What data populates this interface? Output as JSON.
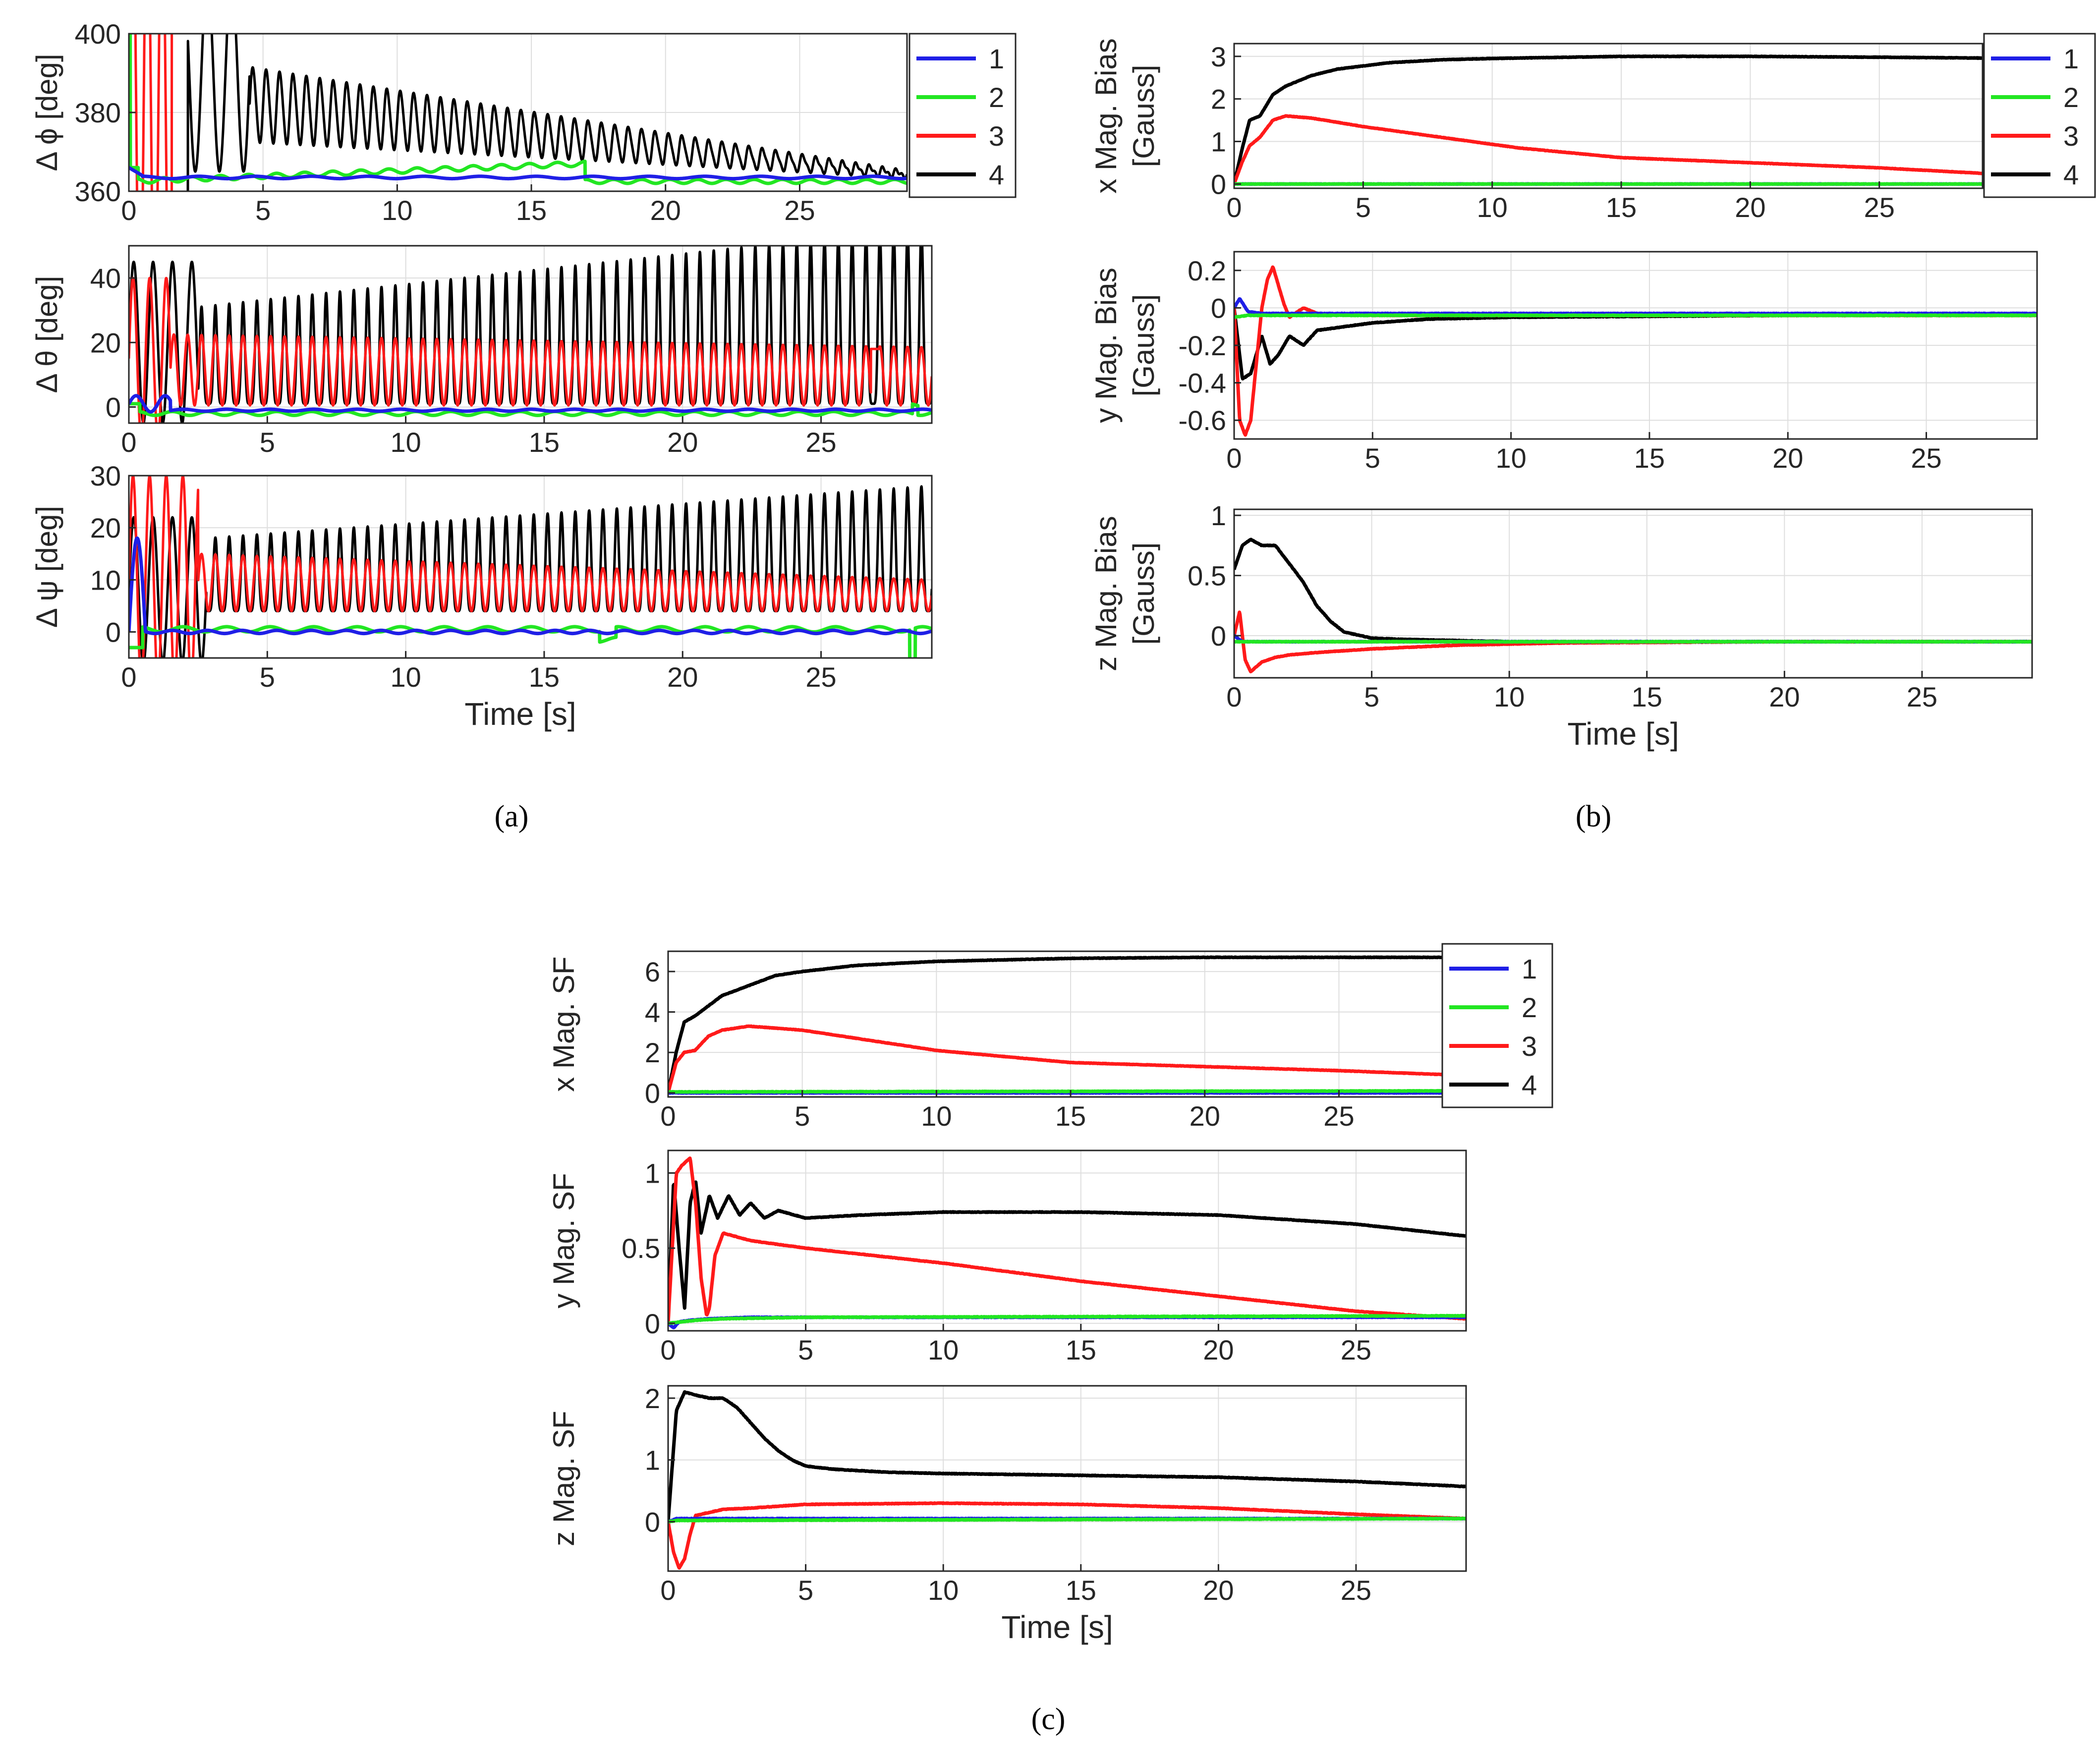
{
  "colors": {
    "1": "#1f1fe6",
    "2": "#22e622",
    "3": "#ff1a1a",
    "4": "#000000"
  },
  "panel_labels": {
    "a": "(a)",
    "b": "(b)",
    "c": "(c)"
  },
  "chart_data": [
    {
      "id": "a1",
      "type": "line",
      "ylabel": "Δ ϕ [deg]",
      "xlabel": "",
      "xlim": [
        0,
        29
      ],
      "ylim": [
        360,
        400
      ],
      "xticks": [
        "0",
        "5",
        "10",
        "15",
        "20",
        "25"
      ],
      "yticks": [
        "360",
        "380",
        "400"
      ],
      "grid": true,
      "legend": [
        "1",
        "2",
        "3",
        "4"
      ],
      "legend_position": "top-right",
      "series": [
        {
          "name": "1",
          "desc": "starts ~365, small blip then settles ~363"
        },
        {
          "name": "2",
          "desc": "starts ~400 at t=0, drops to ~363, drifts up to ~367 near t=16, drops to ~363 after t=17"
        },
        {
          "name": "3",
          "desc": "large oscillation beyond axis until t≈1.5, off-scale afterwards"
        },
        {
          "name": "4",
          "desc": "oscillation amplitude decaying from ~400 at t=3 to ~362 at t=28, ~0.5 s period"
        }
      ]
    },
    {
      "id": "a2",
      "type": "line",
      "ylabel": "Δ θ [deg]",
      "xlabel": "",
      "xlim": [
        0,
        29
      ],
      "ylim": [
        -5,
        50
      ],
      "xticks": [
        "0",
        "5",
        "10",
        "15",
        "20",
        "25"
      ],
      "yticks": [
        "0",
        "20",
        "40"
      ],
      "grid": true,
      "series": [
        {
          "name": "1",
          "desc": "near 0, small transient ~3 at start"
        },
        {
          "name": "2",
          "desc": "near -2, slight ripple"
        },
        {
          "name": "3",
          "desc": "oscillates between ~0 and ~20, spike near t=27"
        },
        {
          "name": "4",
          "desc": "oscillates from ~0 to envelope growing from 30 to >50"
        }
      ]
    },
    {
      "id": "a3",
      "type": "line",
      "ylabel": "Δ ψ [deg]",
      "xlabel": "Time [s]",
      "xlim": [
        0,
        29
      ],
      "ylim": [
        -5,
        30
      ],
      "xticks": [
        "0",
        "5",
        "10",
        "15",
        "20",
        "25"
      ],
      "yticks": [
        "0",
        "10",
        "20",
        "30"
      ],
      "grid": true,
      "series": [
        {
          "name": "1",
          "desc": "spike to ~18 at t≈0.3 then ~0"
        },
        {
          "name": "2",
          "desc": "near 0, dip near t=28"
        },
        {
          "name": "3",
          "desc": "large early swings, then oscillation ~5 to ~15 decaying to ~10"
        },
        {
          "name": "4",
          "desc": "oscillation from ~5 to envelope growing from ~18 to ~28"
        }
      ]
    },
    {
      "id": "b1",
      "type": "line",
      "ylabel": "x Mag. Bias [Gauss]",
      "xlabel": "",
      "xlim": [
        0,
        29
      ],
      "ylim": [
        -0.1,
        3.3
      ],
      "xticks": [
        "0",
        "5",
        "10",
        "15",
        "20",
        "25"
      ],
      "yticks": [
        "0",
        "1",
        "2",
        "3"
      ],
      "grid": true,
      "legend": [
        "1",
        "2",
        "3",
        "4"
      ],
      "legend_position": "top-right",
      "series": [
        {
          "name": "1",
          "x": [
            0,
            29
          ],
          "y": [
            0,
            0
          ]
        },
        {
          "name": "2",
          "x": [
            0,
            29
          ],
          "y": [
            0,
            0
          ]
        },
        {
          "name": "3",
          "x": [
            0,
            0.3,
            0.6,
            1,
            1.5,
            2,
            3,
            5,
            8,
            11,
            15,
            20,
            25,
            29
          ],
          "y": [
            0,
            0.5,
            0.9,
            1.1,
            1.5,
            1.6,
            1.55,
            1.35,
            1.1,
            0.85,
            0.62,
            0.5,
            0.38,
            0.25
          ]
        },
        {
          "name": "4",
          "x": [
            0,
            0.3,
            0.6,
            1,
            1.5,
            2,
            3,
            4,
            6,
            8,
            10,
            15,
            20,
            25,
            29
          ],
          "y": [
            0,
            0.8,
            1.5,
            1.6,
            2.1,
            2.3,
            2.55,
            2.7,
            2.85,
            2.92,
            2.95,
            3.0,
            3.0,
            2.98,
            2.96
          ]
        }
      ]
    },
    {
      "id": "b2",
      "type": "line",
      "ylabel": "y Mag. Bias [Gauss]",
      "xlabel": "",
      "xlim": [
        0,
        29
      ],
      "ylim": [
        -0.7,
        0.3
      ],
      "xticks": [
        "0",
        "5",
        "10",
        "15",
        "20",
        "25"
      ],
      "yticks": [
        "-0.6",
        "-0.4",
        "-0.2",
        "0",
        "0.2"
      ],
      "grid": true,
      "series": [
        {
          "name": "1",
          "x": [
            0,
            0.2,
            0.5,
            1,
            29
          ],
          "y": [
            0,
            0.05,
            -0.02,
            -0.03,
            -0.03
          ]
        },
        {
          "name": "2",
          "x": [
            0,
            0.5,
            29
          ],
          "y": [
            -0.05,
            -0.04,
            -0.04
          ]
        },
        {
          "name": "3",
          "x": [
            0,
            0.2,
            0.4,
            0.6,
            0.8,
            1.0,
            1.2,
            1.4,
            1.6,
            1.8,
            2,
            2.5,
            3,
            5,
            10,
            29
          ],
          "y": [
            0,
            -0.6,
            -0.68,
            -0.6,
            -0.3,
            0,
            0.15,
            0.22,
            0.12,
            0.02,
            -0.05,
            0.0,
            -0.03,
            -0.04,
            -0.04,
            -0.04
          ]
        },
        {
          "name": "4",
          "x": [
            0,
            0.3,
            0.6,
            1,
            1.3,
            1.6,
            2,
            2.5,
            3,
            4,
            5,
            7,
            10,
            15,
            20,
            29
          ],
          "y": [
            0,
            -0.38,
            -0.35,
            -0.15,
            -0.3,
            -0.25,
            -0.15,
            -0.2,
            -0.12,
            -0.1,
            -0.08,
            -0.06,
            -0.05,
            -0.045,
            -0.04,
            -0.04
          ]
        }
      ]
    },
    {
      "id": "b3",
      "type": "line",
      "ylabel": "z Mag. Bias [Gauss]",
      "xlabel": "Time [s]",
      "xlim": [
        0,
        29
      ],
      "ylim": [
        -0.35,
        1.05
      ],
      "xticks": [
        "0",
        "5",
        "10",
        "15",
        "20",
        "25"
      ],
      "yticks": [
        "0",
        "0.5",
        "1"
      ],
      "grid": true,
      "series": [
        {
          "name": "1",
          "x": [
            0,
            0.3,
            29
          ],
          "y": [
            0,
            -0.05,
            -0.05
          ]
        },
        {
          "name": "2",
          "x": [
            0,
            0.3,
            29
          ],
          "y": [
            -0.05,
            -0.05,
            -0.05
          ]
        },
        {
          "name": "3",
          "x": [
            0,
            0.2,
            0.4,
            0.6,
            1,
            1.5,
            2,
            3,
            5,
            8,
            12,
            20,
            29
          ],
          "y": [
            0,
            0.2,
            -0.2,
            -0.3,
            -0.22,
            -0.18,
            -0.16,
            -0.14,
            -0.11,
            -0.08,
            -0.06,
            -0.05,
            -0.05
          ]
        },
        {
          "name": "4",
          "x": [
            0,
            0.3,
            0.6,
            1,
            1.5,
            2,
            2.5,
            3,
            3.5,
            4,
            5,
            6,
            8,
            10,
            29
          ],
          "y": [
            0.55,
            0.75,
            0.8,
            0.75,
            0.75,
            0.6,
            0.45,
            0.25,
            0.12,
            0.03,
            -0.02,
            -0.03,
            -0.04,
            -0.05,
            -0.05
          ]
        }
      ]
    },
    {
      "id": "c1",
      "type": "line",
      "ylabel": "x Mag. SF",
      "xlabel": "",
      "xlim": [
        0,
        29
      ],
      "ylim": [
        -0.2,
        7
      ],
      "xticks": [
        "0",
        "5",
        "10",
        "15",
        "20",
        "25"
      ],
      "yticks": [
        "0",
        "2",
        "4",
        "6"
      ],
      "grid": true,
      "legend": [
        "1",
        "2",
        "3",
        "4"
      ],
      "legend_position": "top-right",
      "series": [
        {
          "name": "1",
          "x": [
            0,
            29
          ],
          "y": [
            0,
            0
          ]
        },
        {
          "name": "2",
          "x": [
            0,
            29
          ],
          "y": [
            0.05,
            0.1
          ]
        },
        {
          "name": "3",
          "x": [
            0,
            0.3,
            0.6,
            1,
            1.5,
            2,
            3,
            4,
            5,
            7,
            10,
            15,
            20,
            25,
            29
          ],
          "y": [
            0,
            1.5,
            2.0,
            2.1,
            2.8,
            3.1,
            3.3,
            3.2,
            3.1,
            2.7,
            2.1,
            1.5,
            1.3,
            1.1,
            0.9
          ]
        },
        {
          "name": "4",
          "x": [
            0,
            0.3,
            0.6,
            1,
            1.5,
            2,
            3,
            4,
            5,
            7,
            10,
            15,
            20,
            25,
            29
          ],
          "y": [
            0,
            2,
            3.5,
            3.8,
            4.3,
            4.8,
            5.3,
            5.8,
            6.0,
            6.3,
            6.5,
            6.65,
            6.7,
            6.7,
            6.7
          ]
        }
      ]
    },
    {
      "id": "c2",
      "type": "line",
      "ylabel": "y Mag. SF",
      "xlabel": "",
      "xlim": [
        0,
        29
      ],
      "ylim": [
        -0.05,
        1.15
      ],
      "xticks": [
        "0",
        "5",
        "10",
        "15",
        "20",
        "25"
      ],
      "yticks": [
        "0",
        "0.5",
        "1"
      ],
      "grid": true,
      "series": [
        {
          "name": "1",
          "x": [
            0,
            0.2,
            0.4,
            0.8,
            1.5,
            3,
            29
          ],
          "y": [
            0,
            -0.03,
            0.01,
            0.02,
            0.03,
            0.04,
            0.04
          ]
        },
        {
          "name": "2",
          "x": [
            0,
            0.5,
            1,
            2,
            5,
            29
          ],
          "y": [
            0,
            0.01,
            0.02,
            0.03,
            0.04,
            0.05
          ]
        },
        {
          "name": "3",
          "x": [
            0,
            0.3,
            0.5,
            0.8,
            1.0,
            1.2,
            1.4,
            1.5,
            1.7,
            2.0,
            3,
            5,
            10,
            15,
            20,
            25,
            29
          ],
          "y": [
            0,
            1.0,
            1.05,
            1.1,
            0.8,
            0.3,
            0.05,
            0.1,
            0.45,
            0.6,
            0.55,
            0.5,
            0.4,
            0.28,
            0.18,
            0.08,
            0.03
          ]
        },
        {
          "name": "4",
          "x": [
            0,
            0.2,
            0.4,
            0.6,
            0.8,
            1.0,
            1.2,
            1.5,
            1.8,
            2.2,
            2.6,
            3,
            3.5,
            4,
            5,
            7,
            10,
            15,
            20,
            25,
            29
          ],
          "y": [
            0,
            0.95,
            0.5,
            0.1,
            0.8,
            0.95,
            0.6,
            0.85,
            0.7,
            0.85,
            0.72,
            0.8,
            0.7,
            0.75,
            0.7,
            0.72,
            0.74,
            0.74,
            0.72,
            0.66,
            0.58
          ]
        }
      ]
    },
    {
      "id": "c3",
      "type": "line",
      "ylabel": "z Mag. SF",
      "xlabel": "Time [s]",
      "xlim": [
        0,
        29
      ],
      "ylim": [
        -0.8,
        2.2
      ],
      "xticks": [
        "0",
        "5",
        "10",
        "15",
        "20",
        "25"
      ],
      "yticks": [
        "0",
        "1",
        "2"
      ],
      "grid": true,
      "series": [
        {
          "name": "1",
          "x": [
            0,
            0.3,
            29
          ],
          "y": [
            0,
            0.05,
            0.05
          ]
        },
        {
          "name": "2",
          "x": [
            0,
            0.3,
            29
          ],
          "y": [
            0,
            0.02,
            0.05
          ]
        },
        {
          "name": "3",
          "x": [
            0,
            0.2,
            0.4,
            0.6,
            0.8,
            1,
            1.5,
            2,
            3,
            5,
            10,
            15,
            20,
            25,
            29
          ],
          "y": [
            0,
            -0.5,
            -0.75,
            -0.6,
            -0.2,
            0.1,
            0.15,
            0.2,
            0.22,
            0.28,
            0.3,
            0.28,
            0.22,
            0.12,
            0.05
          ]
        },
        {
          "name": "4",
          "x": [
            0,
            0.3,
            0.6,
            1,
            1.5,
            2,
            2.5,
            3,
            3.5,
            4,
            4.5,
            5,
            6,
            8,
            10,
            15,
            20,
            25,
            29
          ],
          "y": [
            0,
            1.8,
            2.1,
            2.05,
            2.0,
            2.0,
            1.85,
            1.6,
            1.35,
            1.15,
            1.0,
            0.9,
            0.85,
            0.8,
            0.78,
            0.75,
            0.72,
            0.65,
            0.57
          ]
        }
      ]
    }
  ]
}
